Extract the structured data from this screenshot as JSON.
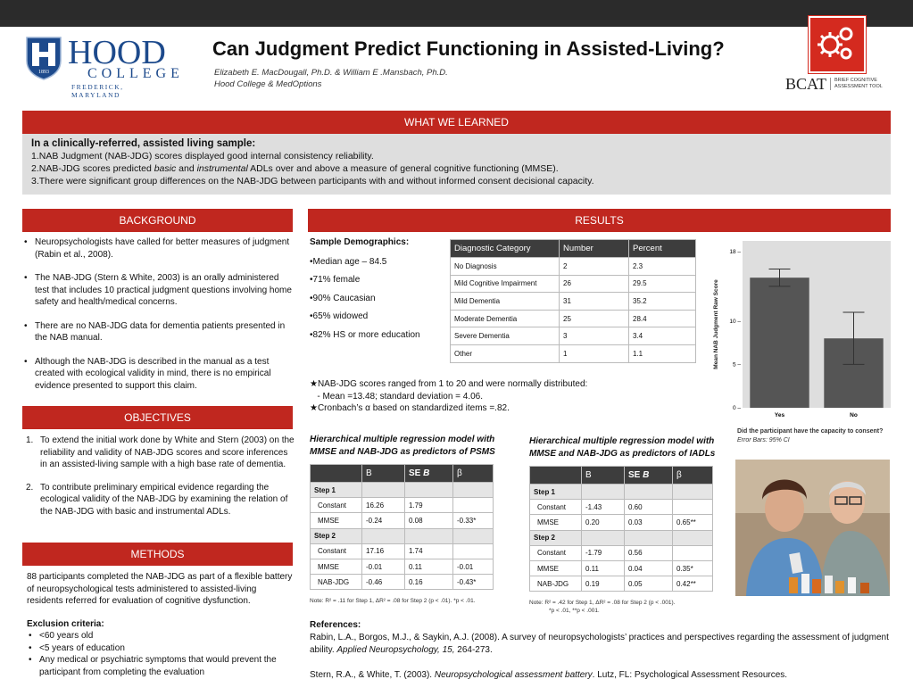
{
  "header": {
    "title": "Can Judgment Predict Functioning in Assisted-Living?",
    "authors": "Elizabeth E. MacDougall, Ph.D. & William E .Mansbach, Ph.D.",
    "affiliation": "Hood College & MedOptions"
  },
  "logos": {
    "hood_word": "HOOD",
    "hood_college": "COLLEGE",
    "hood_location": "FREDERICK, MARYLAND",
    "hood_shield_year": "1893",
    "bcat_word": "BCAT",
    "bcat_sub_1": "BRIEF COGNITIVE",
    "bcat_sub_2": "ASSESSMENT TOOL"
  },
  "colors": {
    "accent": "#c0271f",
    "panel": "#dedede",
    "table_header": "#3d3d3d",
    "brand_blue": "#1d4a8c",
    "bar": "#555555"
  },
  "learned": {
    "heading": "WHAT WE LEARNED",
    "lead": "In a clinically-referred, assisted living sample:",
    "item1": "1.NAB Judgment (NAB-JDG) scores displayed good internal consistency reliability.",
    "item2_a": "2.NAB-JDG scores predicted ",
    "item2_b": "basic",
    "item2_c": " and ",
    "item2_d": "instrumental",
    "item2_e": " ADLs over and above a measure of general cognitive functioning (MMSE).",
    "item3": "3.There were significant group differences on the NAB-JDG between participants with and without informed consent decisional capacity."
  },
  "background": {
    "heading": "BACKGROUND",
    "items": [
      "Neuropsychologists have called for better measures of judgment (Rabin et al., 2008).",
      "The NAB-JDG  (Stern & White, 2003) is an orally administered test that includes 10 practical judgment questions involving home safety and health/medical concerns.",
      "There are no NAB-JDG data for dementia patients presented in the NAB manual.",
      "Although the NAB-JDG is described in the manual as a test created with ecological validity in mind, there is no empirical evidence presented to support this claim."
    ]
  },
  "objectives": {
    "heading": "OBJECTIVES",
    "items": [
      {
        "num": "1.",
        "text": "To extend the initial work done by White and Stern (2003) on the reliability and validity of NAB-JDG scores and score inferences in an assisted-living sample with a high base rate of dementia."
      },
      {
        "num": "2.",
        "text": "To contribute preliminary empirical evidence regarding the ecological validity of the NAB-JDG by examining the relation of the NAB-JDG with basic and instrumental ADLs."
      }
    ]
  },
  "methods": {
    "heading": "METHODS",
    "para": "88 participants completed  the NAB-JDG as part of a flexible battery of neuropsychological tests administered to assisted-living residents referred for evaluation of cognitive dysfunction.",
    "exclusion_heading": "Exclusion criteria:",
    "exclusion": [
      "<60 years old",
      "<5 years of education",
      "Any medical or psychiatric symptoms that would prevent the participant from completing the evaluation"
    ]
  },
  "results": {
    "heading": "RESULTS",
    "demo_heading": "Sample Demographics:",
    "demographics": [
      "•Median age – 84.5",
      "•71% female",
      "•90% Caucasian",
      "•65% widowed",
      "•82% HS or more education"
    ],
    "diag_table": {
      "headers": [
        "Diagnostic Category",
        "Number",
        "Percent"
      ],
      "rows": [
        [
          "No Diagnosis",
          "2",
          "2.3"
        ],
        [
          "Mild Cognitive Impairment",
          "26",
          "29.5"
        ],
        [
          "Mild Dementia",
          "31",
          "35.2"
        ],
        [
          "Moderate Dementia",
          "25",
          "28.4"
        ],
        [
          "Severe Dementia",
          "3",
          "3.4"
        ],
        [
          "Other",
          "1",
          "1.1"
        ]
      ]
    },
    "star1": "★NAB-JDG scores ranged from 1 to 20 and were normally distributed:",
    "star1b": "   - Mean =13.48; standard deviation = 4.06.",
    "star2": "★Cronbach’s α based on standardized items =.82.",
    "psms": {
      "caption": "Hierarchical multiple regression model with MMSE and NAB-JDG as predictors of PSMS",
      "headers": [
        "",
        "B",
        "SE B",
        "β"
      ],
      "step1": "Step 1",
      "step2": "Step 2",
      "rows1": [
        [
          "Constant",
          "16.26",
          "1.79",
          ""
        ],
        [
          "MMSE",
          "-0.24",
          "0.08",
          "-0.33*"
        ]
      ],
      "rows2": [
        [
          "Constant",
          "17.16",
          "1.74",
          ""
        ],
        [
          "MMSE",
          "-0.01",
          "0.11",
          "-0.01"
        ],
        [
          "NAB-JDG",
          "-0.46",
          "0.16",
          "-0.43*"
        ]
      ],
      "note": "Note: R² = .11  for Step 1, ΔR² = .08  for Step 2 (p < .01). *p < .01."
    },
    "iadl": {
      "caption": "Hierarchical multiple regression model with MMSE and NAB-JDG as predictors of IADLs",
      "headers": [
        "",
        "B",
        "SE B",
        "β"
      ],
      "step1": "Step 1",
      "step2": "Step 2",
      "rows1": [
        [
          "Constant",
          "-1.43",
          "0.60",
          ""
        ],
        [
          "MMSE",
          "0.20",
          "0.03",
          "0.65**"
        ]
      ],
      "rows2": [
        [
          "Constant",
          "-1.79",
          "0.56",
          ""
        ],
        [
          "MMSE",
          "0.11",
          "0.04",
          "0.35*"
        ],
        [
          "NAB-JDG",
          "0.19",
          "0.05",
          "0.42**"
        ]
      ],
      "note1": "Note: R² = .42  for Step 1, ΔR² = .08  for Step 2 (p < .001).",
      "note2": "*p < .01, **p < .001."
    },
    "chart_caption": "Did the participant have the capacity to consent?",
    "chart_caption2": "Error Bars: 95% CI"
  },
  "chart_data": {
    "type": "bar",
    "categories": [
      "Yes",
      "No"
    ],
    "values": [
      15.0,
      8.0
    ],
    "error_low": [
      14.0,
      5.0
    ],
    "error_high": [
      16.0,
      11.0
    ],
    "ylabel": "Mean NAB Judgment Raw Score",
    "ylim": [
      0,
      18
    ],
    "yticks": [
      0,
      5,
      10,
      18
    ],
    "ytick_labels": [
      "0 –",
      "5 –",
      "10 –",
      "18 –"
    ],
    "grid": false
  },
  "references": {
    "heading": "References:",
    "ref1_a": "Rabin, L.A., Borgos, M.J., & Saykin, A.J. (2008). A survey of neuropsychologists’ practices and perspectives regarding the assessment of judgment ability. ",
    "ref1_b": "Applied Neuropsychology, 15,",
    "ref1_c": " 264-273.",
    "ref2_a": "Stern, R.A., & White, T. (2003). ",
    "ref2_b": "Neuropsychological assessment battery",
    "ref2_c": ". Lutz, FL: Psychological Assessment Resources."
  }
}
